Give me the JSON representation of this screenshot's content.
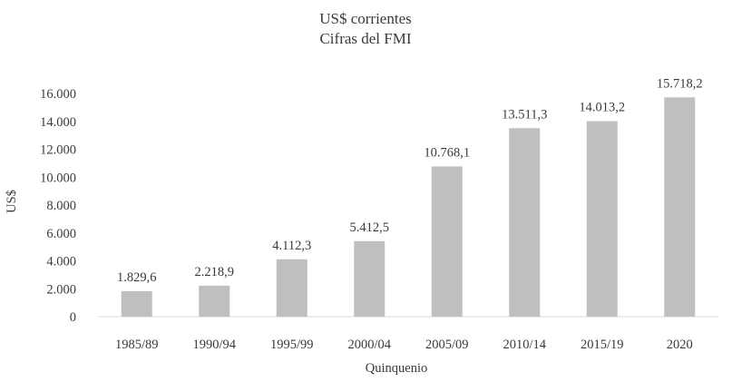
{
  "chart_data": {
    "type": "bar",
    "title": "US$ corrientes",
    "subtitle": "Cifras del FMI",
    "xlabel": "Quinquenio",
    "ylabel": "US$",
    "categories": [
      "1985/89",
      "1990/94",
      "1995/99",
      "2000/04",
      "2005/09",
      "2010/14",
      "2015/19",
      "2020"
    ],
    "values": [
      1829.6,
      2218.9,
      4112.3,
      5412.5,
      10768.1,
      13511.3,
      14013.2,
      15718.2
    ],
    "data_labels": [
      "1.829,6",
      "2.218,9",
      "4.112,3",
      "5.412,5",
      "10.768,1",
      "13.511,3",
      "14.013,2",
      "15.718,2"
    ],
    "ylim": [
      0,
      16000
    ],
    "yticks": [
      0,
      2000,
      4000,
      6000,
      8000,
      10000,
      12000,
      14000,
      16000
    ],
    "ytick_labels": [
      "0",
      "2.000",
      "4.000",
      "6.000",
      "8.000",
      "10.000",
      "12.000",
      "14.000",
      "16.000"
    ],
    "grid": false,
    "legend": "none",
    "colors": {
      "bar": "#bfbfbf",
      "text": "#3a3a3a",
      "axis": "#d9d9d9"
    }
  }
}
